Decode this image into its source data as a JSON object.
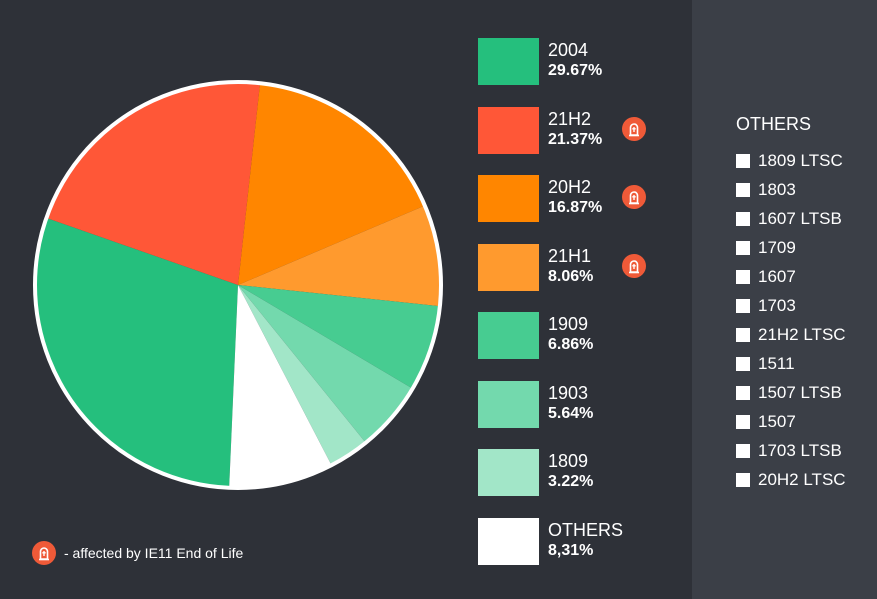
{
  "chart_data": {
    "type": "pie",
    "title": "",
    "slices": [
      {
        "label": "2004",
        "value": 29.67,
        "value_text": "29.67%",
        "color": "#25bf7d",
        "eol": false
      },
      {
        "label": "21H2",
        "value": 21.37,
        "value_text": "21.37%",
        "color": "#ff5737",
        "eol": true
      },
      {
        "label": "20H2",
        "value": 16.87,
        "value_text": "16.87%",
        "color": "#ff8600",
        "eol": true
      },
      {
        "label": "21H1",
        "value": 8.06,
        "value_text": "8.06%",
        "color": "#ff9a2e",
        "eol": true
      },
      {
        "label": "1909",
        "value": 6.86,
        "value_text": "6.86%",
        "color": "#47cc91",
        "eol": false
      },
      {
        "label": "1903",
        "value": 5.64,
        "value_text": "5.64%",
        "color": "#73d9ad",
        "eol": false
      },
      {
        "label": "1809",
        "value": 3.22,
        "value_text": "3.22%",
        "color": "#a2e6c8",
        "eol": false
      },
      {
        "label": "OTHERS",
        "value": 8.31,
        "value_text": "8,31%",
        "color": "#ffffff",
        "eol": false
      }
    ],
    "legend_position": "right"
  },
  "footnote": {
    "text": "- affected by IE11 End of Life",
    "icon": "tombstone-icon",
    "badge_color": "#ef5a38"
  },
  "others_panel": {
    "title": "OTHERS",
    "items": [
      "1809 LTSC",
      "1803",
      "1607 LTSB",
      "1709",
      "1607",
      "1703",
      "21H2 LTSC",
      "1511",
      "1507 LTSB",
      "1507",
      "1703 LTSB",
      "20H2 LTSC"
    ]
  }
}
